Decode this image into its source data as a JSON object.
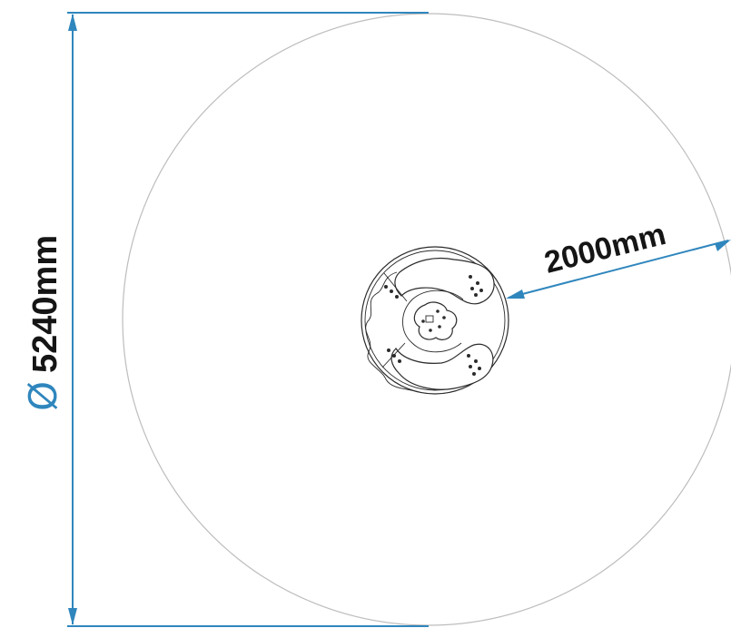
{
  "diagram": {
    "dimensions": {
      "diameter": {
        "symbol": "Ø",
        "label": "5240mm"
      },
      "radius": {
        "label": "2000mm"
      }
    },
    "colors": {
      "dimension_line": "#2f86bd",
      "outer_boundary": "#bdbdbd",
      "equipment": "#2b2b2b"
    }
  }
}
